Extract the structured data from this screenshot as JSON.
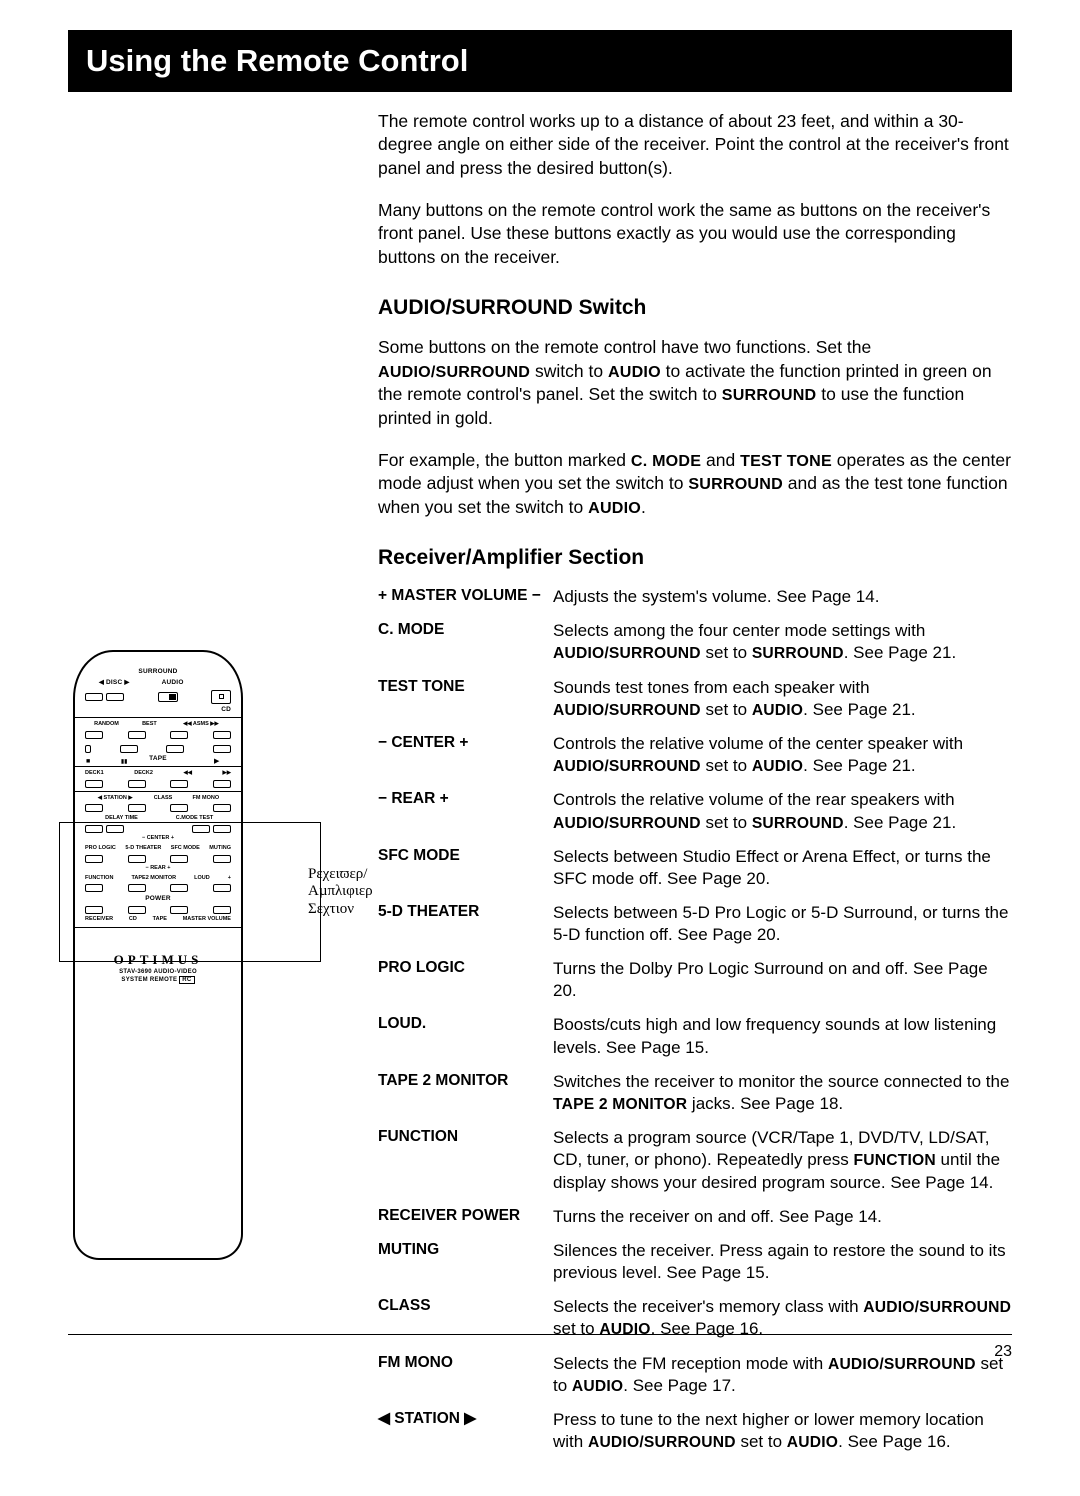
{
  "page": {
    "title": "Using the Remote Control",
    "page_number": "23",
    "intro_paragraphs": [
      "The remote control works up to a distance of about 23 feet, and within a 30-degree angle on either side of the receiver. Point the control at the receiver's front panel and press the desired button(s).",
      "Many buttons on the remote control work the same as buttons on the receiver's front panel. Use these buttons exactly as you would use the corresponding buttons on the receiver."
    ],
    "section1": {
      "heading": "AUDIO/SURROUND Switch"
    },
    "section2": {
      "heading": "Receiver/Amplifier Section"
    },
    "functions": [
      {
        "label": "+ MASTER VOLUME −",
        "desc_plain": "Adjusts the system's volume. See Page 14."
      },
      {
        "label": "C. MODE"
      },
      {
        "label": "TEST TONE"
      },
      {
        "label": "− CENTER +"
      },
      {
        "label": "− REAR +"
      },
      {
        "label": "SFC MODE",
        "desc_plain": "Selects between Studio Effect or Arena Effect, or turns the SFC mode off. See Page 20."
      },
      {
        "label": "5-D THEATER",
        "desc_plain": "Selects between 5-D Pro Logic or 5-D Surround, or turns the 5-D function off. See Page 20."
      },
      {
        "label": "PRO LOGIC",
        "desc_plain": "Turns the Dolby Pro Logic Surround on and off. See Page 20."
      },
      {
        "label": "LOUD.",
        "desc_plain": "Boosts/cuts high and low frequency sounds at low listening levels. See Page 15."
      },
      {
        "label": "TAPE 2 MONITOR"
      },
      {
        "label": "FUNCTION"
      },
      {
        "label": "RECEIVER POWER",
        "desc_plain": "Turns the receiver on and off. See Page 14."
      },
      {
        "label": "MUTING",
        "desc_plain": "Silences the receiver. Press again to restore the sound to its previous level. See Page 15."
      },
      {
        "label": "CLASS"
      },
      {
        "label": "FM MONO"
      },
      {
        "label": "◀ STATION ▶"
      }
    ],
    "callout_label": "Ρεχειϖερ/\nΑµπλιφιερ\nΣεχτιον",
    "remote": {
      "brand": "OPTIMUS",
      "model": "STAV-3690 AUDIO-VIDEO",
      "subtitle": "SYSTEM REMOTE",
      "top_labels": {
        "surround": "SURROUND",
        "disc": "◀ DISC ▶",
        "audio": "AUDIO",
        "cd": "CD"
      },
      "row_labels": [
        "RANDOM",
        "BEST",
        "◀◀ ASMS ▶▶"
      ],
      "tape": "TAPE",
      "deck1": "DECK1",
      "deck2": "DECK2",
      "station": "◀ STATION ▶",
      "class": "CLASS",
      "fmmono": "FM MONO",
      "delay": "DELAY TIME",
      "cmode": "C.MODE TEST",
      "center": "− CENTER +",
      "prologic": "PRO LOGIC",
      "theater": "5-D THEATER",
      "sfc": "SFC MODE",
      "muting": "MUTING",
      "rear": "− REAR +",
      "function": "FUNCTION",
      "tape2": "TAPE2 MONITOR",
      "loud": "LOUD",
      "power": "POWER",
      "receiver": "RECEIVER",
      "cdp": "CD",
      "tapep": "TAPE",
      "master": "MASTER VOLUME"
    }
  }
}
